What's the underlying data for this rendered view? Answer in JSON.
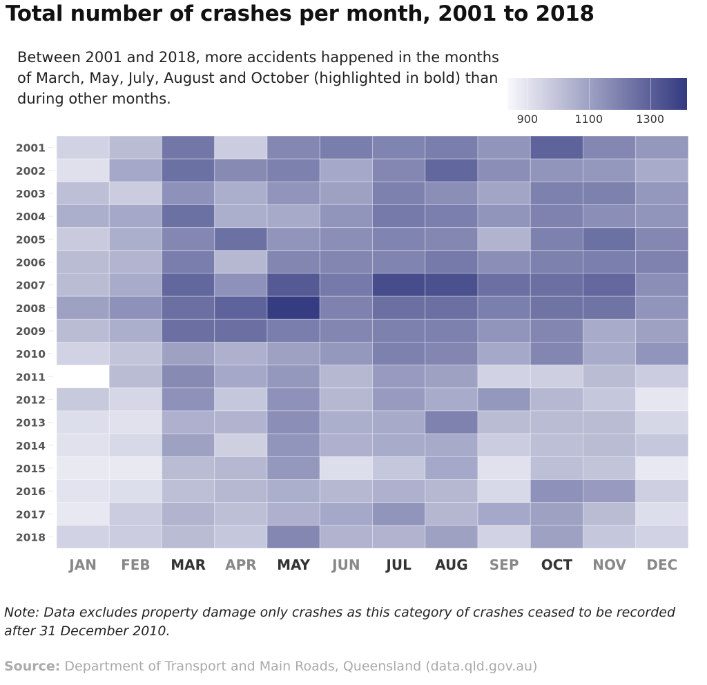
{
  "title": "Total number of crashes per month, 2001 to 2018",
  "subtitle": "Between 2001 and 2018, more accidents happened in the months of March, May, July, August and October (highlighted in bold) than during other months.",
  "note": "Note: Data excludes property damage only crashes as this category of crashes ceased to be recorded after 31 December 2010.",
  "source_label": "Source:",
  "source_text": " Department of Transport and Main Roads, Queensland (data.qld.gov.au)",
  "chart_data": {
    "type": "heatmap",
    "title": "Total number of crashes per month, 2001 to 2018",
    "x_categories": [
      "JAN",
      "FEB",
      "MAR",
      "APR",
      "MAY",
      "JUN",
      "JUL",
      "AUG",
      "SEP",
      "OCT",
      "NOV",
      "DEC"
    ],
    "highlighted_months": [
      "MAR",
      "MAY",
      "JUL",
      "AUG",
      "OCT"
    ],
    "y_categories": [
      "2001",
      "2002",
      "2003",
      "2004",
      "2005",
      "2006",
      "2007",
      "2008",
      "2009",
      "2010",
      "2011",
      "2012",
      "2013",
      "2014",
      "2015",
      "2016",
      "2017",
      "2018"
    ],
    "color_scale": {
      "low": "#f8f8fc",
      "high": "#33397f",
      "range": [
        835,
        1420
      ],
      "ticks": [
        900,
        1100,
        1300
      ]
    },
    "legend_position": "top-right",
    "values": [
      [
        950,
        1020,
        1230,
        970,
        1180,
        1210,
        1190,
        1210,
        1140,
        1290,
        1180,
        1130
      ],
      [
        910,
        1080,
        1250,
        1170,
        1200,
        1080,
        1180,
        1280,
        1160,
        1140,
        1130,
        1070
      ],
      [
        1010,
        970,
        1150,
        1060,
        1140,
        1100,
        1200,
        1160,
        1090,
        1200,
        1200,
        1130
      ],
      [
        1060,
        1080,
        1250,
        1060,
        1075,
        1140,
        1220,
        1205,
        1140,
        1195,
        1160,
        1140
      ],
      [
        975,
        1060,
        1180,
        1250,
        1140,
        1160,
        1190,
        1180,
        1045,
        1200,
        1250,
        1180
      ],
      [
        1020,
        1040,
        1210,
        1030,
        1185,
        1185,
        1190,
        1220,
        1160,
        1200,
        1205,
        1195
      ],
      [
        1020,
        1070,
        1280,
        1150,
        1320,
        1220,
        1360,
        1350,
        1255,
        1255,
        1275,
        1160
      ],
      [
        1100,
        1150,
        1255,
        1290,
        1410,
        1195,
        1255,
        1255,
        1205,
        1240,
        1240,
        1140
      ],
      [
        1020,
        1060,
        1255,
        1255,
        1210,
        1185,
        1200,
        1200,
        1140,
        1185,
        1070,
        1100
      ],
      [
        950,
        995,
        1100,
        1055,
        1100,
        1130,
        1200,
        1185,
        1080,
        1185,
        1070,
        1140
      ],
      [
        null,
        1020,
        1170,
        1080,
        1130,
        1030,
        1120,
        1100,
        950,
        960,
        1020,
        970
      ],
      [
        980,
        940,
        1150,
        985,
        1150,
        1030,
        1120,
        1070,
        1130,
        1030,
        985,
        890
      ],
      [
        915,
        905,
        1055,
        1045,
        1160,
        1060,
        1075,
        1195,
        1020,
        1020,
        1020,
        940
      ],
      [
        905,
        930,
        1100,
        960,
        1140,
        1055,
        1070,
        1075,
        970,
        1010,
        1020,
        985
      ],
      [
        880,
        880,
        1020,
        1030,
        1130,
        915,
        985,
        1080,
        905,
        1010,
        995,
        885
      ],
      [
        900,
        915,
        1010,
        1030,
        1060,
        1030,
        1055,
        1030,
        930,
        1150,
        1120,
        960
      ],
      [
        885,
        970,
        1045,
        1010,
        1055,
        1080,
        1140,
        1035,
        1080,
        1100,
        1020,
        915
      ],
      [
        950,
        970,
        1020,
        985,
        1180,
        1045,
        1045,
        1100,
        950,
        1100,
        985,
        950
      ]
    ]
  }
}
